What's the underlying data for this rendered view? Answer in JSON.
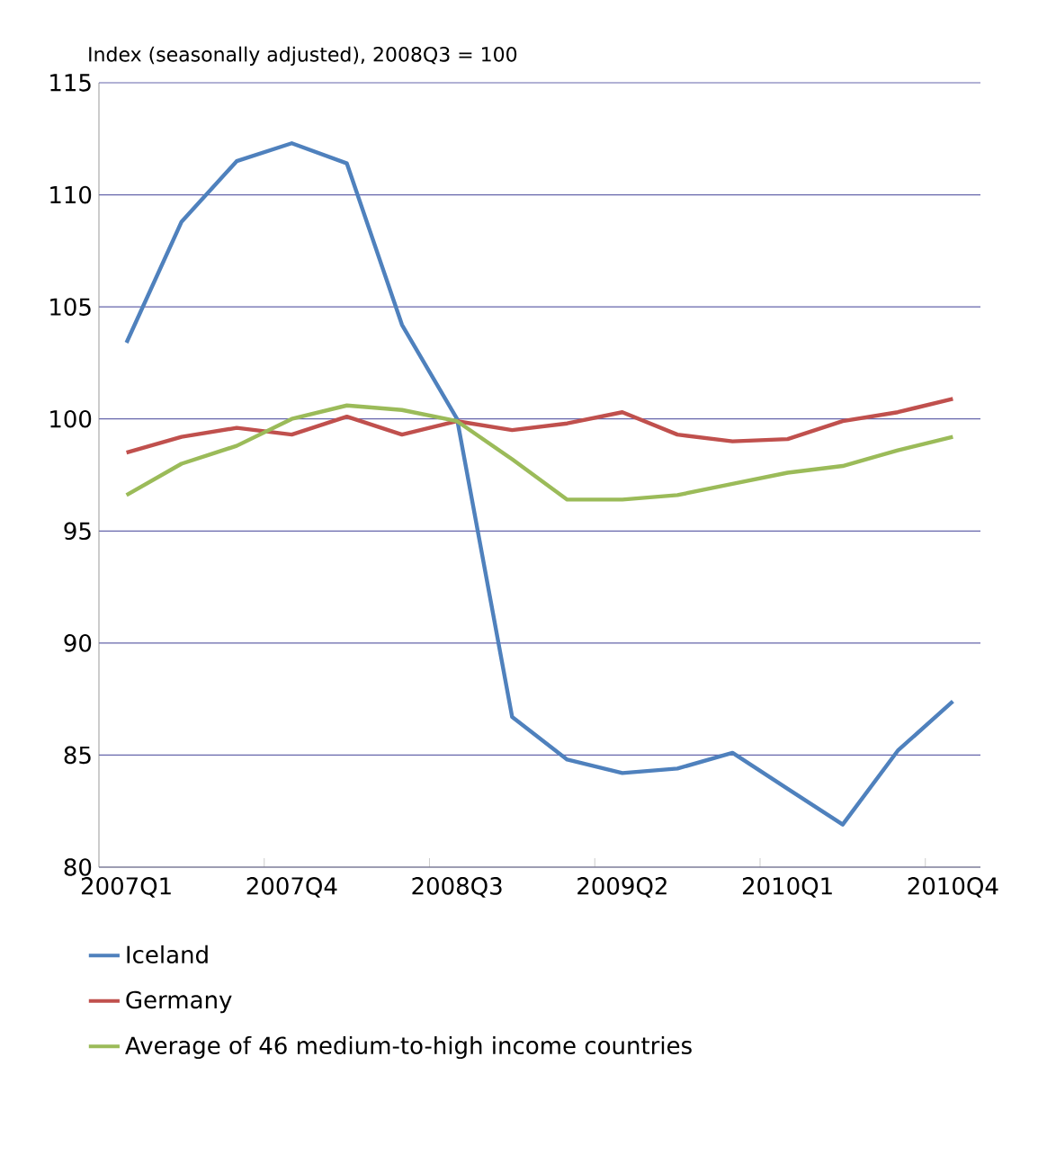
{
  "chart_data": {
    "type": "line",
    "ylabel": "Index (seasonally adjusted),  2008Q3 = 100",
    "categories": [
      "2007Q1",
      null,
      null,
      "2007Q4",
      null,
      null,
      "2008Q3",
      null,
      null,
      "2009Q2",
      null,
      null,
      "2010Q1",
      null,
      null,
      "2010Q4"
    ],
    "ylim": [
      80,
      115
    ],
    "yticks": [
      80,
      85,
      90,
      95,
      100,
      105,
      110,
      115
    ],
    "grid": "y",
    "legend": "bottom",
    "marker": "none",
    "line_style": "solid",
    "series": [
      {
        "name": "Iceland",
        "color": "#4f81bd",
        "values": [
          103.4,
          108.8,
          111.5,
          112.3,
          111.4,
          104.2,
          100.0,
          86.7,
          84.8,
          84.2,
          84.4,
          85.1,
          83.5,
          81.9,
          85.2,
          87.4
        ]
      },
      {
        "name": "Germany",
        "color": "#c0504d",
        "values": [
          98.5,
          99.2,
          99.6,
          99.3,
          100.1,
          99.3,
          99.9,
          99.5,
          99.8,
          100.3,
          99.3,
          99.0,
          99.1,
          99.9,
          100.3,
          100.9
        ]
      },
      {
        "name": "Average of 46 medium-to-high income countries",
        "color": "#9bbb59",
        "values": [
          96.6,
          98.0,
          98.8,
          100.0,
          100.6,
          100.4,
          99.9,
          98.2,
          96.4,
          96.4,
          96.6,
          97.1,
          97.6,
          97.9,
          98.6,
          99.2
        ]
      }
    ]
  }
}
